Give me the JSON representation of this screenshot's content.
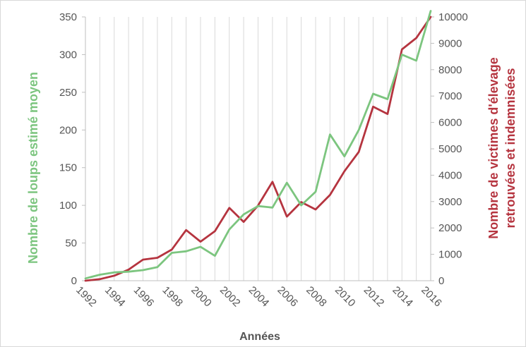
{
  "chart_data": {
    "type": "line",
    "title": "",
    "xlabel": "Années",
    "ylabel_left": "Nombre de loups estimé moyen",
    "ylabel_right_lines": [
      "Nombre de victimes d'élevage",
      "retrouvées et indemnisées"
    ],
    "x_tick_labels": [
      "1992",
      "1994",
      "1996",
      "1998",
      "2000",
      "2002",
      "2004",
      "2006",
      "2008",
      "2010",
      "2012",
      "2014",
      "2016"
    ],
    "ylim_left": [
      0,
      350
    ],
    "yticks_left": [
      0,
      50,
      100,
      150,
      200,
      250,
      300,
      350
    ],
    "ylim_right": [
      0,
      10000
    ],
    "yticks_right": [
      0,
      1000,
      2000,
      3000,
      4000,
      5000,
      6000,
      7000,
      8000,
      9000,
      10000
    ],
    "grid": "vertical",
    "colors": {
      "wolves": "#7cc57f",
      "victims": "#b5343f",
      "axis_left_title": "#7cc57f",
      "axis_right_title": "#b5343f",
      "grid": "#d9d9d9"
    },
    "series": [
      {
        "axis": "left",
        "x": [
          1992,
          1993,
          1994,
          1995,
          1996,
          1997,
          1998,
          1999,
          2000,
          2001,
          2002,
          2003,
          2004,
          2005,
          2006,
          2007,
          2008,
          2009,
          2010,
          2011,
          2012,
          2013,
          2014,
          2015,
          2016
        ],
        "values": [
          3,
          8,
          11,
          12,
          14,
          18,
          37,
          39,
          45,
          33,
          68,
          88,
          99,
          97,
          130,
          100,
          118,
          194,
          165,
          200,
          248,
          241,
          300,
          292,
          358
        ]
      },
      {
        "axis": "right",
        "x": [
          1992,
          1993,
          1994,
          1995,
          1996,
          1997,
          1998,
          1999,
          2000,
          2001,
          2002,
          2003,
          2004,
          2005,
          2006,
          2007,
          2008,
          2009,
          2010,
          2011,
          2012,
          2013,
          2014,
          2015,
          2016
        ],
        "values": [
          0,
          60,
          190,
          420,
          800,
          870,
          1180,
          1920,
          1480,
          1880,
          2760,
          2230,
          2850,
          3750,
          2430,
          2980,
          2700,
          3250,
          4150,
          4880,
          6600,
          6320,
          8770,
          9200,
          10000
        ]
      }
    ]
  }
}
